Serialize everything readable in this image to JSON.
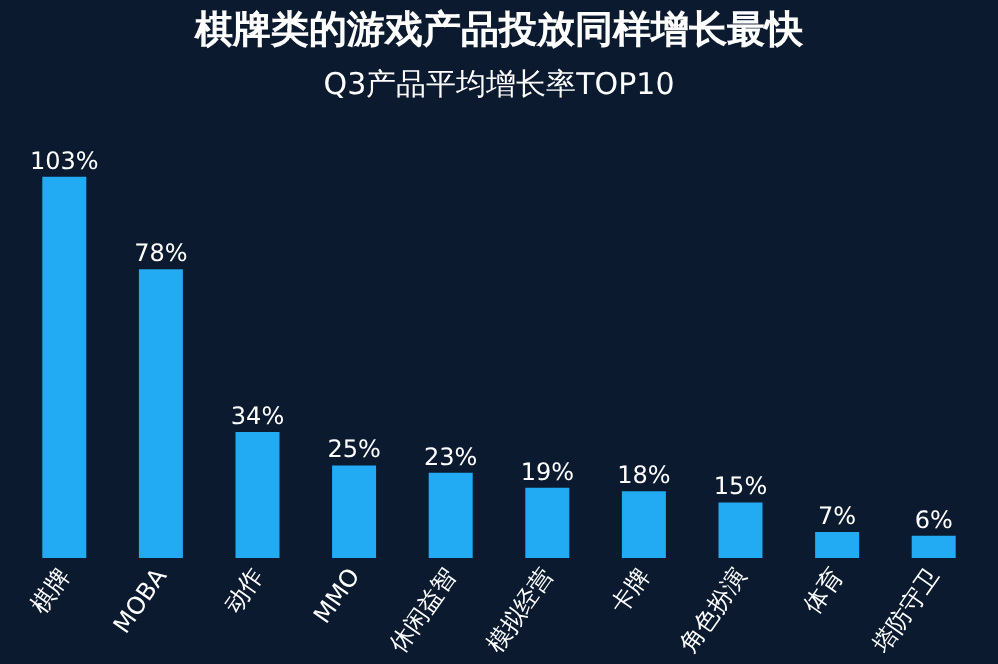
{
  "chart_data": {
    "type": "bar",
    "title": "棋牌类的游戏产品投放同样增长最快",
    "subtitle": "Q3产品平均增长率TOP10",
    "categories": [
      "棋牌",
      "MOBA",
      "动作",
      "MMO",
      "休闲益智",
      "模拟经营",
      "卡牌",
      "角色扮演",
      "体育",
      "塔防守卫"
    ],
    "values": [
      103,
      78,
      34,
      25,
      23,
      19,
      18,
      15,
      7,
      6
    ],
    "value_labels": [
      "103%",
      "78%",
      "34%",
      "25%",
      "23%",
      "19%",
      "18%",
      "15%",
      "7%",
      "6%"
    ],
    "color": "#22aaf2"
  }
}
